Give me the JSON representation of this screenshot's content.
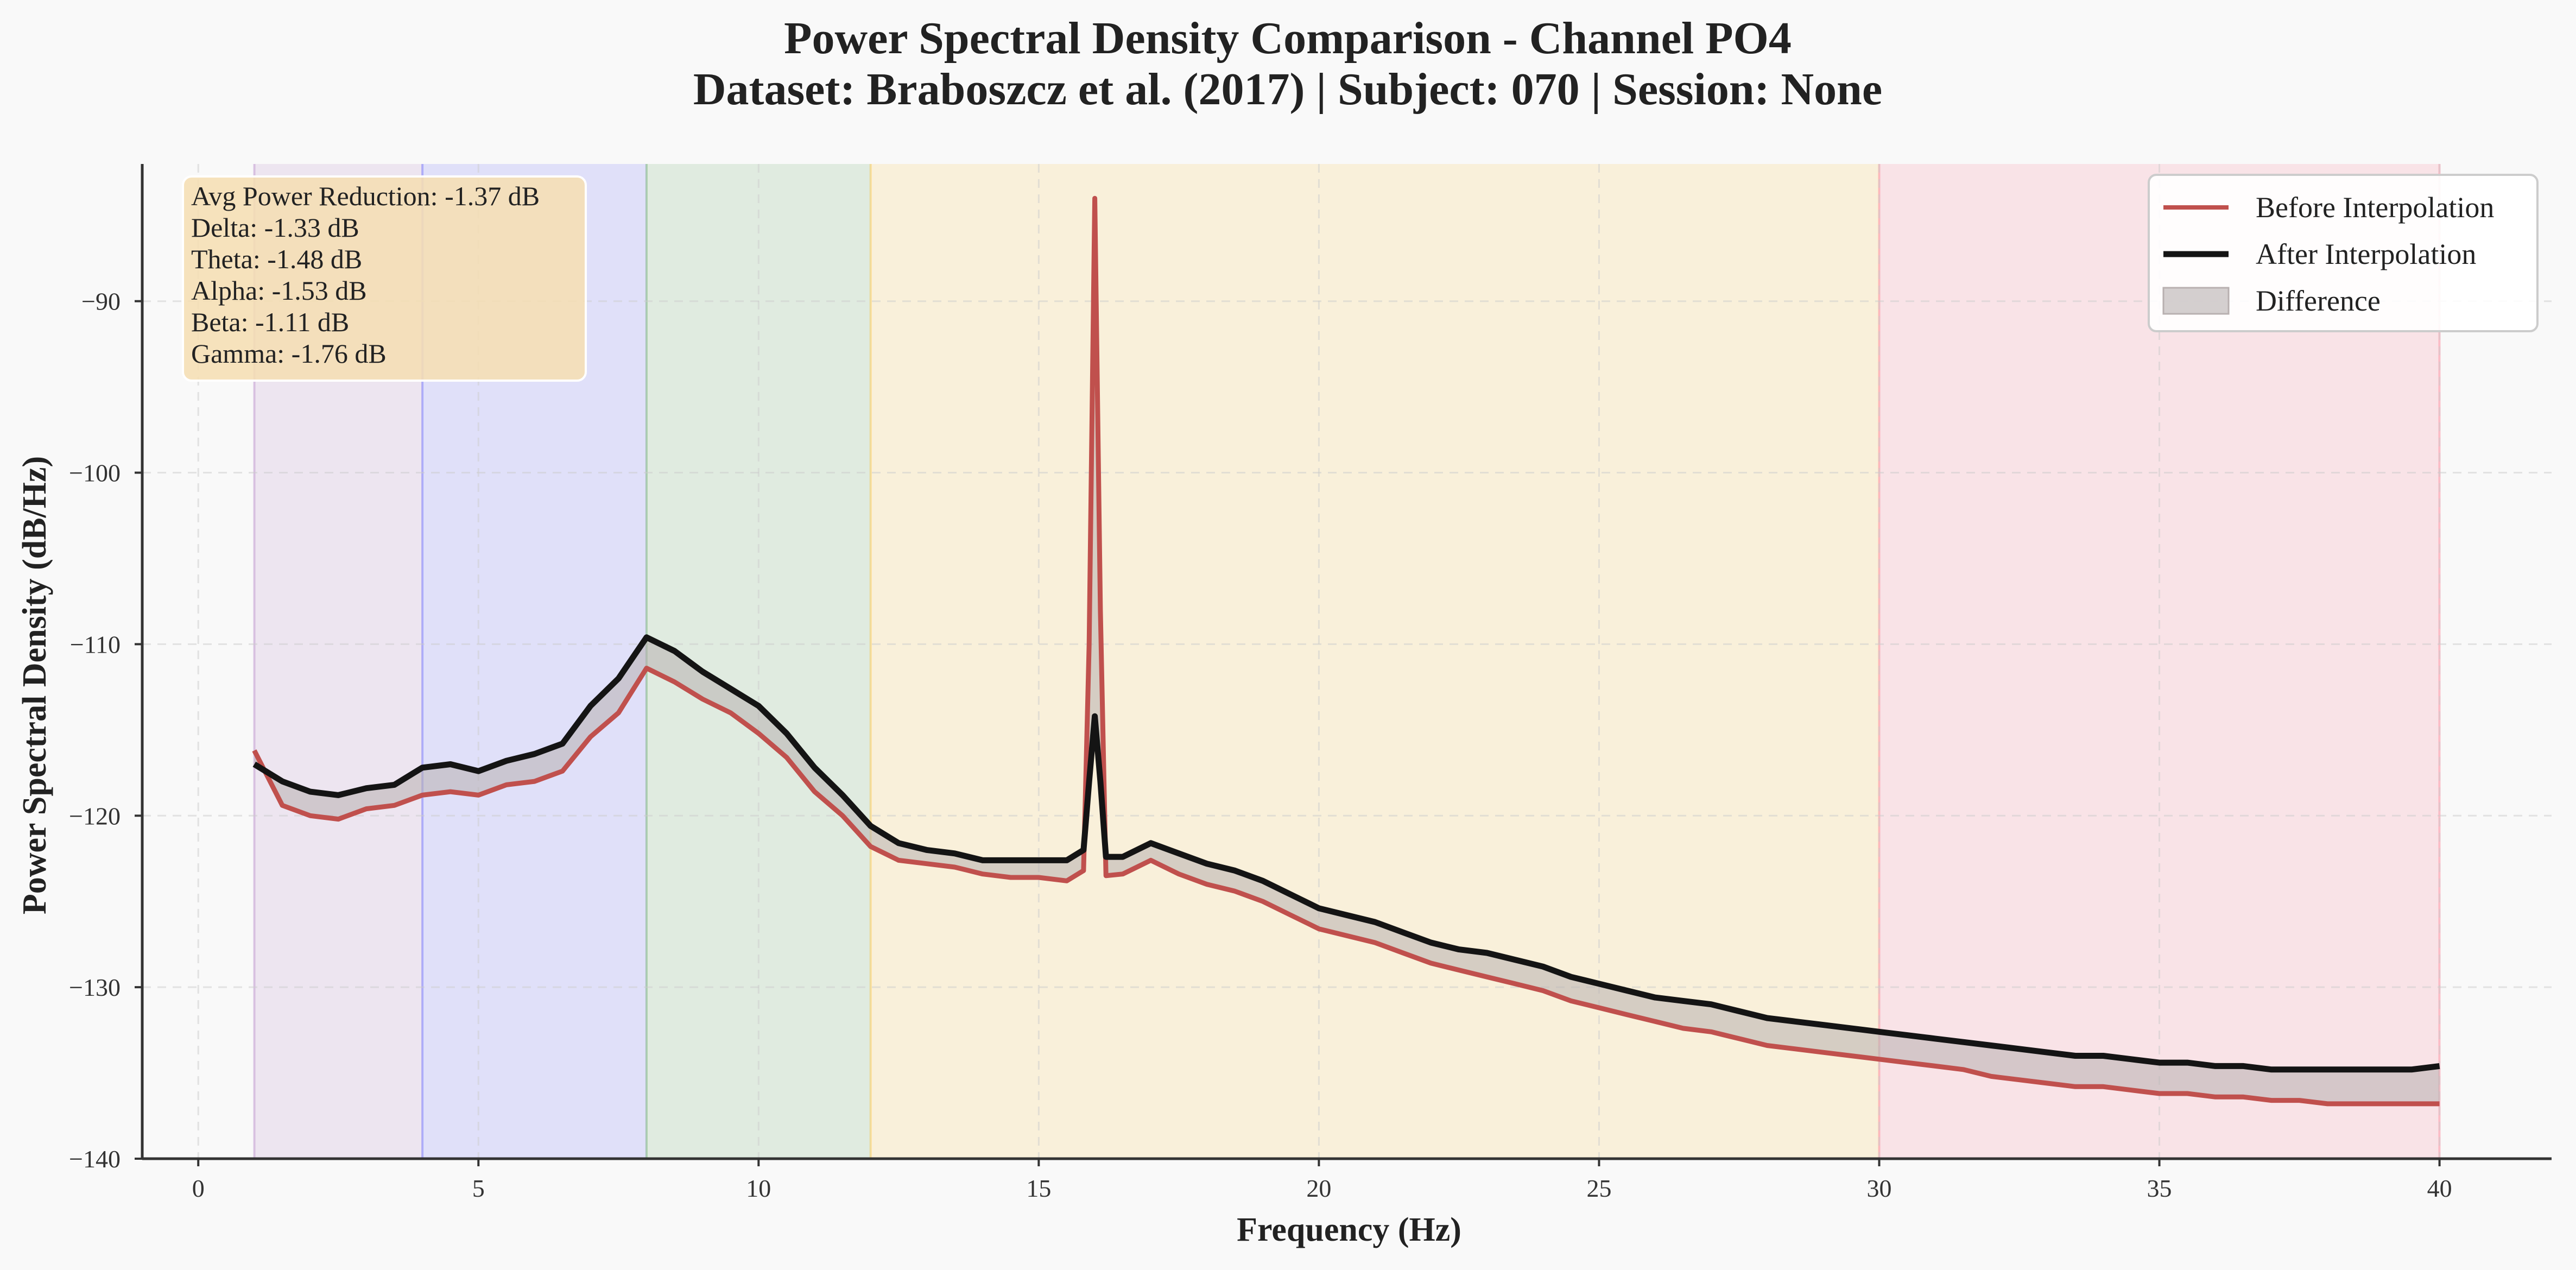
{
  "chart_data": {
    "type": "line",
    "title": "Power Spectral Density Comparison - Channel PO4",
    "subtitle": "Dataset: Braboszcz et al. (2017) | Subject: 070 | Session: None",
    "xlabel": "Frequency (Hz)",
    "ylabel": "Power Spectral Density (dB/Hz)",
    "xlim": [
      -1,
      42
    ],
    "ylim": [
      -140,
      -82
    ],
    "x_ticks": [
      0,
      5,
      10,
      15,
      20,
      25,
      30,
      35,
      40
    ],
    "y_ticks": [
      -140,
      -130,
      -120,
      -110,
      -100,
      -90
    ],
    "grid": true,
    "legend_position": "top-right",
    "bands": [
      {
        "name": "Delta",
        "range": [
          1,
          4
        ],
        "color": "#9b59b6"
      },
      {
        "name": "Theta",
        "range": [
          4,
          8
        ],
        "color": "#3333ff"
      },
      {
        "name": "Alpha",
        "range": [
          8,
          12
        ],
        "color": "#2e8b2e"
      },
      {
        "name": "Beta",
        "range": [
          12,
          30
        ],
        "color": "#ffb300"
      },
      {
        "name": "Gamma",
        "range": [
          30,
          40
        ],
        "color": "#ff4d6a"
      }
    ],
    "series": [
      {
        "name": "Before Interpolation",
        "color": "#c0504d",
        "points": [
          [
            1.0,
            -116.2
          ],
          [
            1.5,
            -119.4
          ],
          [
            2.0,
            -120.0
          ],
          [
            2.5,
            -120.2
          ],
          [
            3.0,
            -119.6
          ],
          [
            3.5,
            -119.4
          ],
          [
            4.0,
            -118.8
          ],
          [
            4.5,
            -118.6
          ],
          [
            5.0,
            -118.8
          ],
          [
            5.5,
            -118.2
          ],
          [
            6.0,
            -118.0
          ],
          [
            6.5,
            -117.4
          ],
          [
            7.0,
            -115.4
          ],
          [
            7.5,
            -114.0
          ],
          [
            8.0,
            -111.4
          ],
          [
            8.5,
            -112.2
          ],
          [
            9.0,
            -113.2
          ],
          [
            9.5,
            -114.0
          ],
          [
            10.0,
            -115.2
          ],
          [
            10.5,
            -116.6
          ],
          [
            11.0,
            -118.6
          ],
          [
            11.5,
            -120.0
          ],
          [
            12.0,
            -121.8
          ],
          [
            12.5,
            -122.6
          ],
          [
            13.0,
            -122.8
          ],
          [
            13.5,
            -123.0
          ],
          [
            14.0,
            -123.4
          ],
          [
            14.5,
            -123.6
          ],
          [
            15.0,
            -123.6
          ],
          [
            15.5,
            -123.8
          ],
          [
            15.8,
            -123.2
          ],
          [
            15.9,
            -110.0
          ],
          [
            16.0,
            -84.0
          ],
          [
            16.1,
            -108.0
          ],
          [
            16.2,
            -123.5
          ],
          [
            16.5,
            -123.4
          ],
          [
            17.0,
            -122.6
          ],
          [
            17.5,
            -123.4
          ],
          [
            18.0,
            -124.0
          ],
          [
            18.5,
            -124.4
          ],
          [
            19.0,
            -125.0
          ],
          [
            19.5,
            -125.8
          ],
          [
            20.0,
            -126.6
          ],
          [
            20.5,
            -127.0
          ],
          [
            21.0,
            -127.4
          ],
          [
            21.5,
            -128.0
          ],
          [
            22.0,
            -128.6
          ],
          [
            22.5,
            -129.0
          ],
          [
            23.0,
            -129.4
          ],
          [
            23.5,
            -129.8
          ],
          [
            24.0,
            -130.2
          ],
          [
            24.5,
            -130.8
          ],
          [
            25.0,
            -131.2
          ],
          [
            25.5,
            -131.6
          ],
          [
            26.0,
            -132.0
          ],
          [
            26.5,
            -132.4
          ],
          [
            27.0,
            -132.6
          ],
          [
            27.5,
            -133.0
          ],
          [
            28.0,
            -133.4
          ],
          [
            28.5,
            -133.6
          ],
          [
            29.0,
            -133.8
          ],
          [
            29.5,
            -134.0
          ],
          [
            30.0,
            -134.2
          ],
          [
            30.5,
            -134.4
          ],
          [
            31.0,
            -134.6
          ],
          [
            31.5,
            -134.8
          ],
          [
            32.0,
            -135.2
          ],
          [
            32.5,
            -135.4
          ],
          [
            33.0,
            -135.6
          ],
          [
            33.5,
            -135.8
          ],
          [
            34.0,
            -135.8
          ],
          [
            34.5,
            -136.0
          ],
          [
            35.0,
            -136.2
          ],
          [
            35.5,
            -136.2
          ],
          [
            36.0,
            -136.4
          ],
          [
            36.5,
            -136.4
          ],
          [
            37.0,
            -136.6
          ],
          [
            37.5,
            -136.6
          ],
          [
            38.0,
            -136.8
          ],
          [
            38.5,
            -136.8
          ],
          [
            39.0,
            -136.8
          ],
          [
            39.5,
            -136.8
          ],
          [
            40.0,
            -136.8
          ]
        ]
      },
      {
        "name": "After Interpolation",
        "color": "#141414",
        "points": [
          [
            1.0,
            -117.0
          ],
          [
            1.5,
            -118.0
          ],
          [
            2.0,
            -118.6
          ],
          [
            2.5,
            -118.8
          ],
          [
            3.0,
            -118.4
          ],
          [
            3.5,
            -118.2
          ],
          [
            4.0,
            -117.2
          ],
          [
            4.5,
            -117.0
          ],
          [
            5.0,
            -117.4
          ],
          [
            5.5,
            -116.8
          ],
          [
            6.0,
            -116.4
          ],
          [
            6.5,
            -115.8
          ],
          [
            7.0,
            -113.6
          ],
          [
            7.5,
            -112.0
          ],
          [
            8.0,
            -109.6
          ],
          [
            8.5,
            -110.4
          ],
          [
            9.0,
            -111.6
          ],
          [
            9.5,
            -112.6
          ],
          [
            10.0,
            -113.6
          ],
          [
            10.5,
            -115.2
          ],
          [
            11.0,
            -117.2
          ],
          [
            11.5,
            -118.8
          ],
          [
            12.0,
            -120.6
          ],
          [
            12.5,
            -121.6
          ],
          [
            13.0,
            -122.0
          ],
          [
            13.5,
            -122.2
          ],
          [
            14.0,
            -122.6
          ],
          [
            14.5,
            -122.6
          ],
          [
            15.0,
            -122.6
          ],
          [
            15.5,
            -122.6
          ],
          [
            15.8,
            -122.0
          ],
          [
            15.9,
            -118.0
          ],
          [
            16.0,
            -114.2
          ],
          [
            16.1,
            -118.0
          ],
          [
            16.2,
            -122.4
          ],
          [
            16.5,
            -122.4
          ],
          [
            17.0,
            -121.6
          ],
          [
            17.5,
            -122.2
          ],
          [
            18.0,
            -122.8
          ],
          [
            18.5,
            -123.2
          ],
          [
            19.0,
            -123.8
          ],
          [
            19.5,
            -124.6
          ],
          [
            20.0,
            -125.4
          ],
          [
            20.5,
            -125.8
          ],
          [
            21.0,
            -126.2
          ],
          [
            21.5,
            -126.8
          ],
          [
            22.0,
            -127.4
          ],
          [
            22.5,
            -127.8
          ],
          [
            23.0,
            -128.0
          ],
          [
            23.5,
            -128.4
          ],
          [
            24.0,
            -128.8
          ],
          [
            24.5,
            -129.4
          ],
          [
            25.0,
            -129.8
          ],
          [
            25.5,
            -130.2
          ],
          [
            26.0,
            -130.6
          ],
          [
            26.5,
            -130.8
          ],
          [
            27.0,
            -131.0
          ],
          [
            27.5,
            -131.4
          ],
          [
            28.0,
            -131.8
          ],
          [
            28.5,
            -132.0
          ],
          [
            29.0,
            -132.2
          ],
          [
            29.5,
            -132.4
          ],
          [
            30.0,
            -132.6
          ],
          [
            30.5,
            -132.8
          ],
          [
            31.0,
            -133.0
          ],
          [
            31.5,
            -133.2
          ],
          [
            32.0,
            -133.4
          ],
          [
            32.5,
            -133.6
          ],
          [
            33.0,
            -133.8
          ],
          [
            33.5,
            -134.0
          ],
          [
            34.0,
            -134.0
          ],
          [
            34.5,
            -134.2
          ],
          [
            35.0,
            -134.4
          ],
          [
            35.5,
            -134.4
          ],
          [
            36.0,
            -134.6
          ],
          [
            36.5,
            -134.6
          ],
          [
            37.0,
            -134.8
          ],
          [
            37.5,
            -134.8
          ],
          [
            38.0,
            -134.8
          ],
          [
            38.5,
            -134.8
          ],
          [
            39.0,
            -134.8
          ],
          [
            39.5,
            -134.8
          ],
          [
            40.0,
            -134.6
          ]
        ]
      }
    ],
    "legend": [
      {
        "label": "Before Interpolation",
        "kind": "line",
        "color": "#c0504d"
      },
      {
        "label": "After Interpolation",
        "kind": "line",
        "color": "#141414"
      },
      {
        "label": "Difference",
        "kind": "patch",
        "color": "#b8b0b0"
      }
    ],
    "stats_box": [
      "Avg Power Reduction: -1.37 dB",
      "Delta: -1.33 dB",
      "Theta: -1.48 dB",
      "Alpha: -1.53 dB",
      "Beta: -1.11 dB",
      "Gamma: -1.76 dB"
    ]
  }
}
